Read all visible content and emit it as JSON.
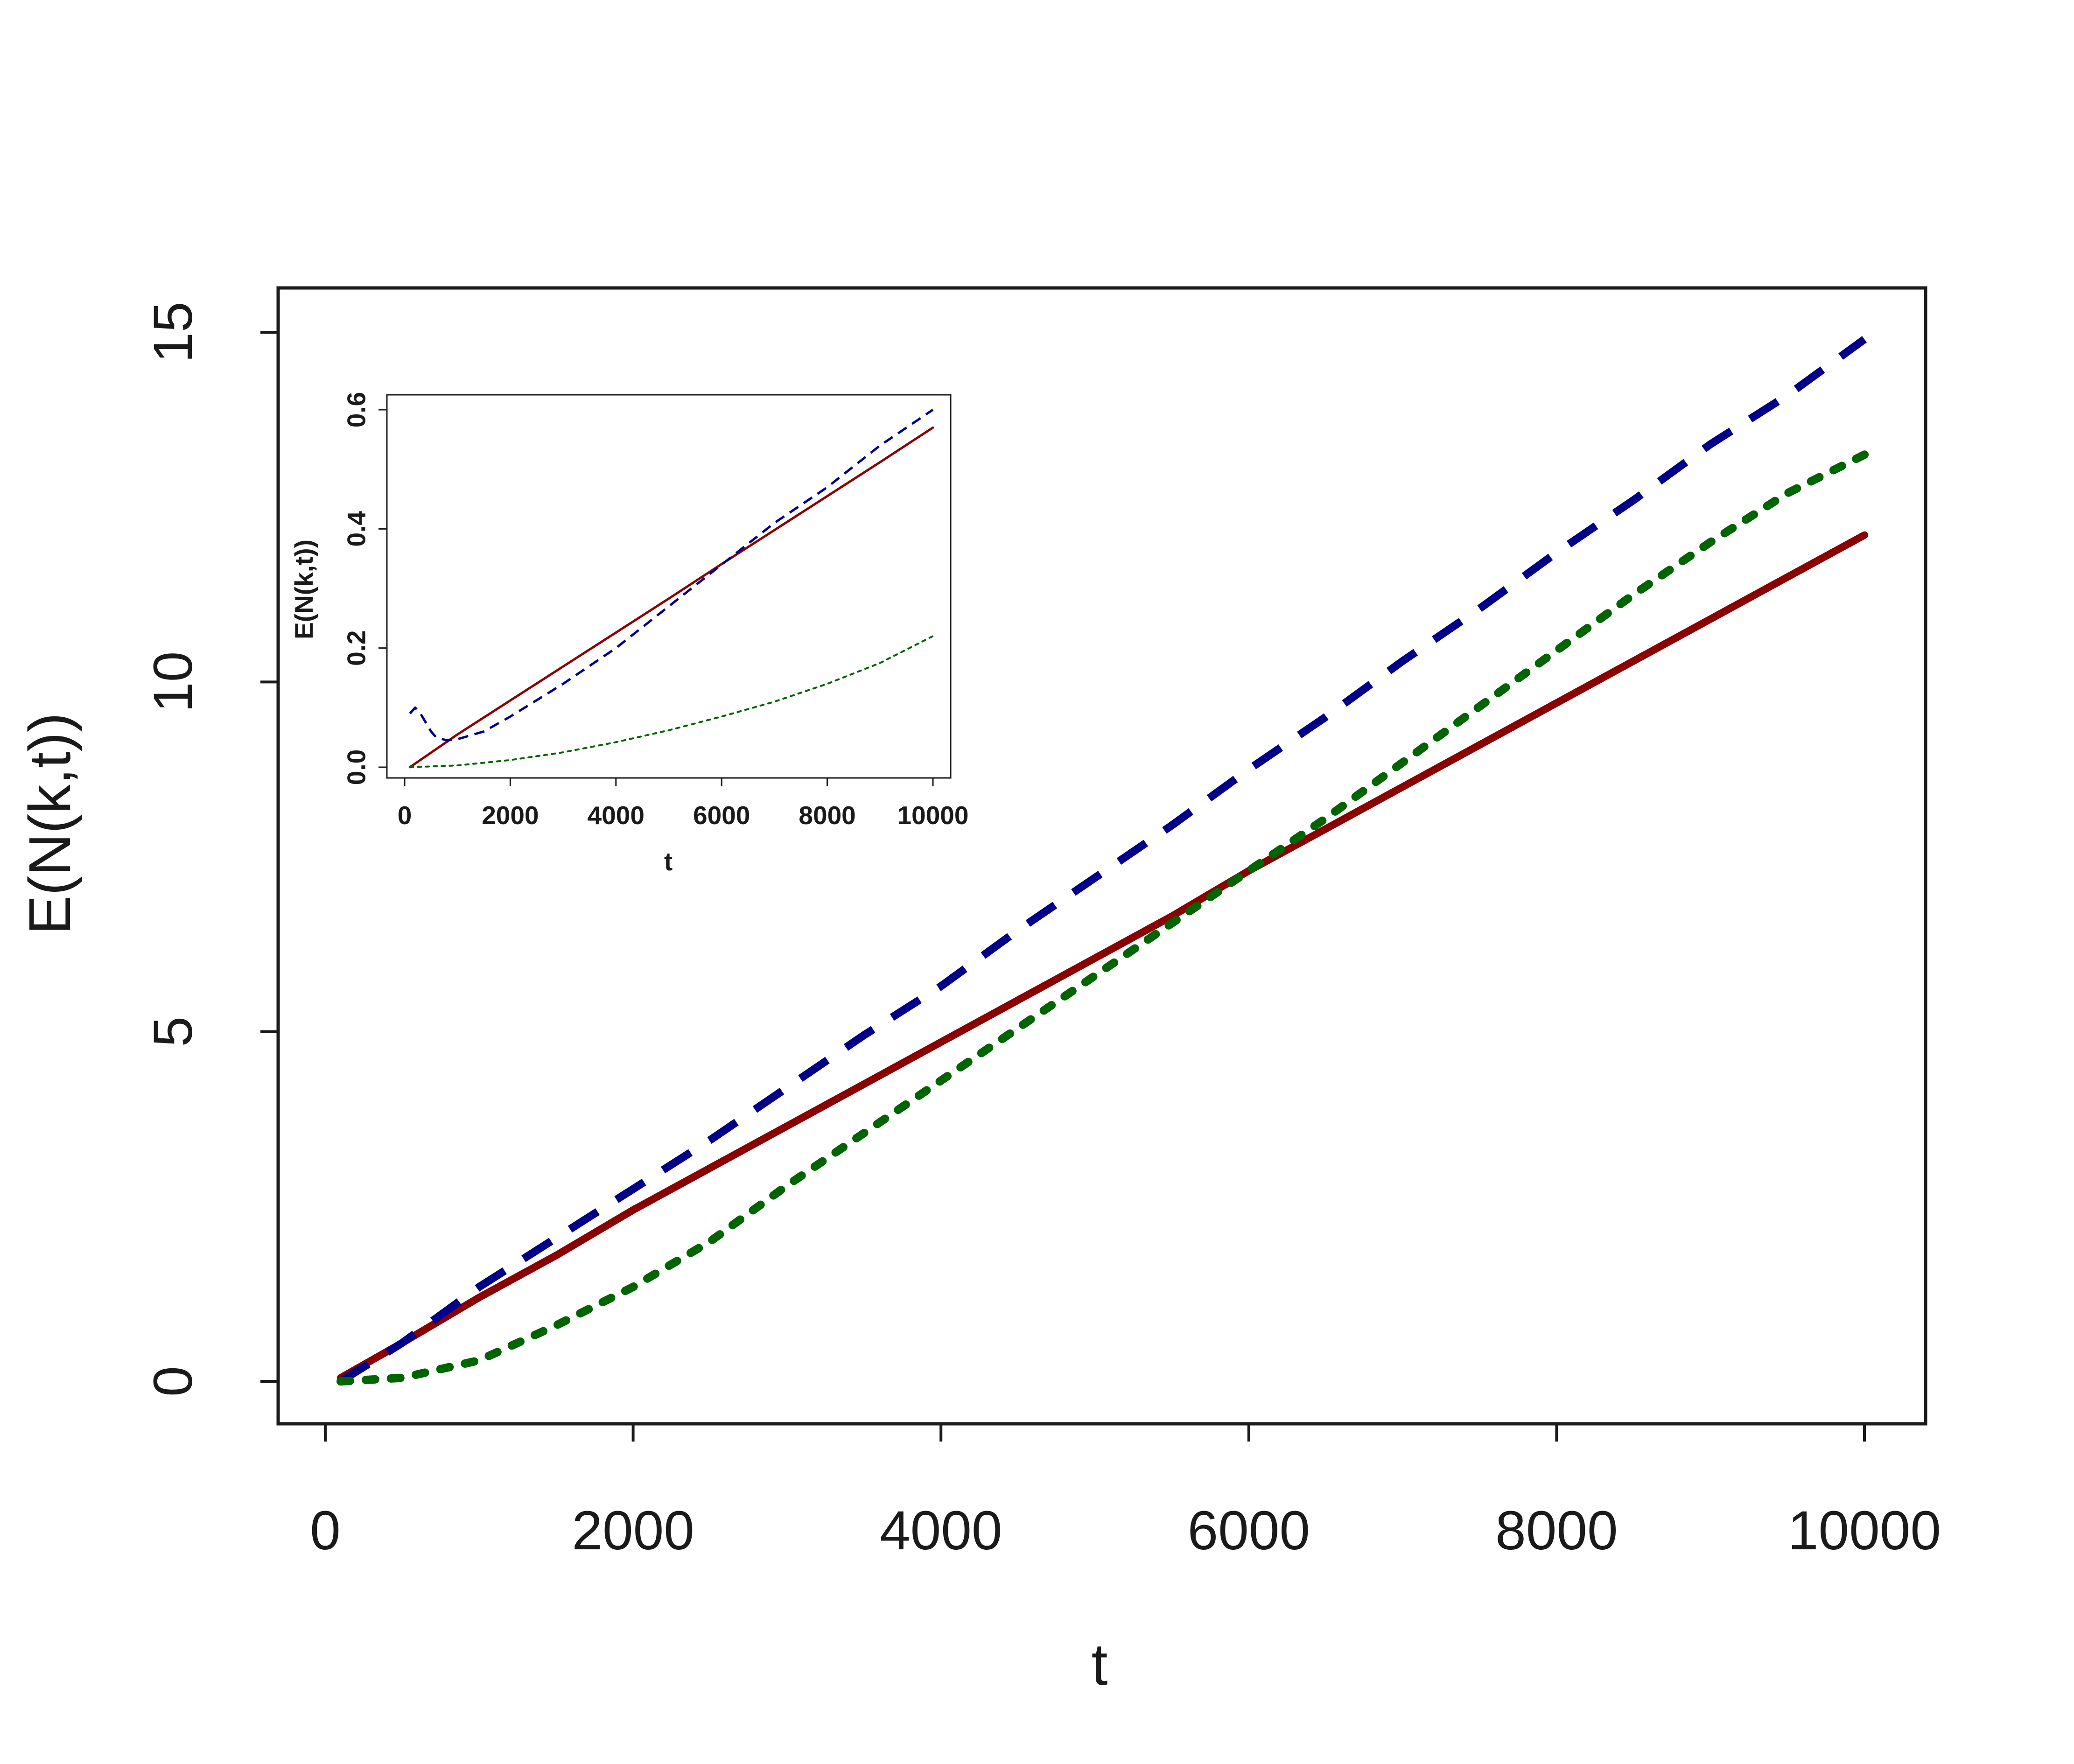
{
  "chart_data": [
    {
      "type": "line",
      "role": "main",
      "xlabel": "t",
      "ylabel": "E(N(k,t))",
      "xlim": [
        0,
        10000
      ],
      "ylim": [
        0,
        15
      ],
      "xticks": [
        0,
        2000,
        4000,
        6000,
        8000,
        10000
      ],
      "yticks": [
        0,
        5,
        10,
        15
      ],
      "grid": false,
      "x": [
        100,
        500,
        1000,
        1500,
        2000,
        2500,
        3000,
        3500,
        4000,
        4500,
        5000,
        5500,
        6000,
        6500,
        7000,
        7500,
        8000,
        8500,
        9000,
        9500,
        10000
      ],
      "series": [
        {
          "style": "solid",
          "color": "#8b0000",
          "values": [
            0.05,
            0.55,
            1.2,
            1.8,
            2.45,
            3.05,
            3.65,
            4.25,
            4.85,
            5.45,
            6.05,
            6.65,
            7.3,
            7.9,
            8.5,
            9.1,
            9.7,
            10.3,
            10.9,
            11.5,
            12.1
          ]
        },
        {
          "style": "dashed",
          "color": "#00008b",
          "values": [
            0.0,
            0.55,
            1.35,
            2.05,
            2.75,
            3.45,
            4.2,
            4.95,
            5.65,
            6.45,
            7.2,
            7.95,
            8.75,
            9.5,
            10.3,
            11.05,
            11.85,
            12.6,
            13.4,
            14.1,
            14.9
          ]
        },
        {
          "style": "dotted",
          "color": "#006400",
          "values": [
            0.0,
            0.05,
            0.3,
            0.8,
            1.35,
            2.0,
            2.8,
            3.55,
            4.3,
            5.05,
            5.8,
            6.55,
            7.3,
            8.05,
            8.85,
            9.65,
            10.45,
            11.25,
            12.0,
            12.7,
            13.25
          ]
        }
      ]
    },
    {
      "type": "line",
      "role": "inset",
      "xlabel": "t",
      "ylabel": "E(N(k,t))",
      "xlim": [
        0,
        10000
      ],
      "ylim": [
        0,
        0.6
      ],
      "xticks": [
        0,
        2000,
        4000,
        6000,
        8000,
        10000
      ],
      "yticks": [
        0.0,
        0.2,
        0.4,
        0.6
      ],
      "ytick_labels": [
        "0.0",
        "0.2",
        "0.4",
        "0.6"
      ],
      "grid": false,
      "series": [
        {
          "style": "solid",
          "color": "#8b0000",
          "x": [
            100,
            1000,
            2000,
            3000,
            4000,
            5000,
            6000,
            7000,
            8000,
            9000,
            10000
          ],
          "values": [
            0.0,
            0.055,
            0.112,
            0.169,
            0.226,
            0.283,
            0.341,
            0.398,
            0.455,
            0.512,
            0.57
          ]
        },
        {
          "style": "dashed",
          "color": "#00008b",
          "x": [
            100,
            200,
            300,
            400,
            500,
            600,
            800,
            1000,
            1500,
            2000,
            3000,
            4000,
            5000,
            6000,
            7000,
            8000,
            9000,
            10000
          ],
          "values": [
            0.09,
            0.1,
            0.09,
            0.075,
            0.06,
            0.05,
            0.045,
            0.047,
            0.06,
            0.085,
            0.14,
            0.2,
            0.27,
            0.34,
            0.41,
            0.47,
            0.54,
            0.6
          ]
        },
        {
          "style": "dotted",
          "color": "#006400",
          "x": [
            100,
            1000,
            2000,
            3000,
            4000,
            5000,
            6000,
            7000,
            8000,
            9000,
            10000
          ],
          "values": [
            0.0,
            0.003,
            0.012,
            0.025,
            0.042,
            0.062,
            0.085,
            0.11,
            0.14,
            0.175,
            0.22
          ]
        }
      ]
    }
  ]
}
